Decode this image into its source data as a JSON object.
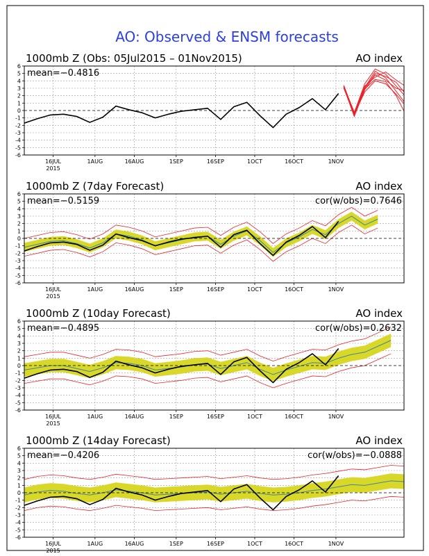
{
  "title": "AO: Observed & ENSM forecasts",
  "colors": {
    "title": "#2b3fe0",
    "observed": "#000000",
    "ensemble_members": "#e8232a",
    "spread_band": "#d9d728",
    "spread_envelope": "#e8232a",
    "ensemble_mean": "#3a8a9a",
    "grid": "#9a9a9a"
  },
  "chart_data": [
    {
      "type": "line",
      "title": "1000mb Z (Obs: 05Jul2015 – 01Nov2015)",
      "right_label": "AO index",
      "mean_label": "mean=−0.4816",
      "cor_label": "",
      "ylim": [
        -6,
        6
      ],
      "yticks": [
        "6",
        "5",
        "4",
        "3",
        "2",
        "1",
        "0",
        "-1",
        "-2",
        "-3",
        "-4",
        "-5",
        "-6"
      ],
      "xticks": [
        "16JUL",
        "1AUG",
        "16AUG",
        "1SEP",
        "16SEP",
        "1OCT",
        "16OCT",
        "1NOV"
      ],
      "xtick_days": [
        11,
        27,
        42,
        58,
        73,
        88,
        103,
        119
      ],
      "year_label": "2015",
      "xlim_days": [
        0,
        145
      ],
      "grid": true,
      "observed": {
        "x": [
          0,
          5,
          10,
          15,
          20,
          25,
          30,
          35,
          40,
          45,
          50,
          55,
          60,
          65,
          70,
          75,
          80,
          85,
          90,
          95,
          100,
          105,
          110,
          115,
          120
        ],
        "y": [
          -1.7,
          -1.1,
          -0.6,
          -0.5,
          -0.8,
          -1.6,
          -0.9,
          0.6,
          0.1,
          -0.3,
          -1.0,
          -0.5,
          -0.1,
          0.1,
          0.3,
          -1.2,
          0.5,
          1.1,
          -0.7,
          -2.3,
          -0.5,
          0.4,
          1.6,
          0.1,
          2.3
        ]
      },
      "forecast_members": [
        {
          "x": [
            122,
            126,
            130,
            134,
            138,
            142,
            145
          ],
          "y": [
            3.2,
            -0.6,
            3.1,
            5.3,
            4.4,
            2.6,
            1.2
          ]
        },
        {
          "x": [
            122,
            126,
            130,
            134,
            138,
            142,
            145
          ],
          "y": [
            3.4,
            -0.3,
            3.6,
            5.6,
            4.9,
            3.3,
            2.1
          ]
        },
        {
          "x": [
            122,
            126,
            130,
            134,
            138,
            142,
            145
          ],
          "y": [
            3.1,
            -0.8,
            2.8,
            4.8,
            4.1,
            3.0,
            2.7
          ]
        },
        {
          "x": [
            122,
            126,
            130,
            134,
            138,
            142,
            145
          ],
          "y": [
            3.3,
            -0.4,
            3.3,
            4.5,
            5.2,
            4.1,
            3.4
          ]
        },
        {
          "x": [
            122,
            126,
            130,
            134,
            138,
            142,
            145
          ],
          "y": [
            3.0,
            -0.5,
            2.5,
            4.0,
            3.6,
            2.2,
            0.9
          ]
        },
        {
          "x": [
            122,
            126,
            130,
            134,
            138,
            142,
            145
          ],
          "y": [
            3.2,
            -0.2,
            3.0,
            5.0,
            4.6,
            3.8,
            2.5
          ]
        },
        {
          "x": [
            122,
            126,
            130,
            134,
            138,
            142,
            145
          ],
          "y": [
            3.1,
            -0.6,
            2.9,
            4.2,
            3.9,
            2.0,
            -0.1
          ]
        }
      ]
    },
    {
      "type": "line",
      "title": "1000mb Z (7day Forecast)",
      "right_label": "AO index",
      "mean_label": "mean=−0.5159",
      "cor_label": "cor(w/obs)=0.7646",
      "ylim": [
        -6,
        6
      ],
      "yticks": [
        "6",
        "5",
        "4",
        "3",
        "2",
        "1",
        "0",
        "-1",
        "-2",
        "-3",
        "-4",
        "-5",
        "-6"
      ],
      "xticks": [
        "16JUL",
        "1AUG",
        "16AUG",
        "1SEP",
        "16SEP",
        "1OCT",
        "16OCT",
        "1NOV"
      ],
      "xtick_days": [
        11,
        27,
        42,
        58,
        73,
        88,
        103,
        119
      ],
      "year_label": "2015",
      "xlim_days": [
        0,
        145
      ],
      "grid": true,
      "observed": {
        "x": [
          0,
          5,
          10,
          15,
          20,
          25,
          30,
          35,
          40,
          45,
          50,
          55,
          60,
          65,
          70,
          75,
          80,
          85,
          90,
          95,
          100,
          105,
          110,
          115,
          120
        ],
        "y": [
          -1.7,
          -1.1,
          -0.6,
          -0.5,
          -0.8,
          -1.6,
          -0.9,
          0.6,
          0.1,
          -0.3,
          -1.0,
          -0.5,
          -0.1,
          0.1,
          0.3,
          -1.2,
          0.5,
          1.1,
          -0.7,
          -2.3,
          -0.5,
          0.4,
          1.6,
          0.1,
          2.3
        ]
      },
      "ensemble_mean": {
        "x": [
          0,
          5,
          10,
          15,
          20,
          25,
          30,
          35,
          40,
          45,
          50,
          55,
          60,
          65,
          70,
          75,
          80,
          85,
          90,
          95,
          100,
          105,
          110,
          115,
          120,
          125,
          130,
          135
        ],
        "y": [
          -1.2,
          -0.8,
          -0.4,
          -0.3,
          -0.7,
          -1.3,
          -0.6,
          0.6,
          0.3,
          -0.2,
          -1.0,
          -0.6,
          -0.2,
          0.2,
          0.3,
          -0.8,
          0.3,
          1.0,
          -0.3,
          -1.9,
          -0.6,
          0.2,
          1.2,
          0.5,
          2.0,
          3.0,
          1.8,
          2.6
        ]
      },
      "spread": 0.6,
      "envelope": 1.2
    },
    {
      "type": "line",
      "title": "1000mb Z (10day Forecast)",
      "right_label": "AO index",
      "mean_label": "mean=−0.4895",
      "cor_label": "cor(w/obs)=0.2632",
      "ylim": [
        -6,
        6
      ],
      "yticks": [
        "6",
        "5",
        "4",
        "3",
        "2",
        "1",
        "0",
        "-1",
        "-2",
        "-3",
        "-4",
        "-5",
        "-6"
      ],
      "xticks": [
        "16JUL",
        "1AUG",
        "16AUG",
        "1SEP",
        "16SEP",
        "1OCT",
        "16OCT",
        "1NOV"
      ],
      "xtick_days": [
        11,
        27,
        42,
        58,
        73,
        88,
        103,
        119
      ],
      "year_label": "2015",
      "xlim_days": [
        0,
        145
      ],
      "grid": true,
      "observed": {
        "x": [
          0,
          5,
          10,
          15,
          20,
          25,
          30,
          35,
          40,
          45,
          50,
          55,
          60,
          65,
          70,
          75,
          80,
          85,
          90,
          95,
          100,
          105,
          110,
          115,
          120
        ],
        "y": [
          -1.7,
          -1.1,
          -0.6,
          -0.5,
          -0.8,
          -1.6,
          -0.9,
          0.6,
          0.1,
          -0.3,
          -1.0,
          -0.5,
          -0.1,
          0.1,
          0.3,
          -1.2,
          0.5,
          1.1,
          -0.7,
          -2.3,
          -0.5,
          0.4,
          1.6,
          0.1,
          2.3
        ]
      },
      "ensemble_mean": {
        "x": [
          0,
          5,
          10,
          15,
          20,
          25,
          30,
          35,
          40,
          45,
          50,
          55,
          60,
          65,
          70,
          75,
          80,
          85,
          90,
          95,
          100,
          105,
          110,
          115,
          120,
          125,
          130,
          135,
          140
        ],
        "y": [
          -0.6,
          -0.3,
          0.0,
          0.0,
          -0.4,
          -0.8,
          -0.3,
          0.4,
          0.3,
          0.0,
          -0.6,
          -0.4,
          -0.2,
          0.1,
          0.2,
          -0.4,
          0.0,
          0.4,
          -0.5,
          -1.2,
          -0.6,
          -0.1,
          0.4,
          0.3,
          1.0,
          1.5,
          1.8,
          2.6,
          3.4
        ]
      },
      "spread": 0.9,
      "envelope": 1.8
    },
    {
      "type": "line",
      "title": "1000mb Z (14day Forecast)",
      "right_label": "AO index",
      "mean_label": "mean=−0.4206",
      "cor_label": "cor(w/obs)=−0.0888",
      "ylim": [
        -6,
        6
      ],
      "yticks": [
        "6",
        "5",
        "4",
        "3",
        "2",
        "1",
        "0",
        "-1",
        "-2",
        "-3",
        "-4",
        "-5",
        "-6"
      ],
      "xticks": [
        "16JUL",
        "1AUG",
        "16AUG",
        "1SEP",
        "16SEP",
        "1OCT",
        "16OCT",
        "1NOV"
      ],
      "xtick_days": [
        11,
        27,
        42,
        58,
        73,
        88,
        103,
        119
      ],
      "year_label": "2015",
      "xlim_days": [
        0,
        145
      ],
      "grid": true,
      "observed": {
        "x": [
          0,
          5,
          10,
          15,
          20,
          25,
          30,
          35,
          40,
          45,
          50,
          55,
          60,
          65,
          70,
          75,
          80,
          85,
          90,
          95,
          100,
          105,
          110,
          115,
          120
        ],
        "y": [
          -1.7,
          -1.1,
          -0.6,
          -0.5,
          -0.8,
          -1.6,
          -0.9,
          0.6,
          0.1,
          -0.3,
          -1.0,
          -0.5,
          -0.1,
          0.1,
          0.3,
          -1.2,
          0.5,
          1.1,
          -0.7,
          -2.3,
          -0.5,
          0.4,
          1.6,
          0.1,
          2.3
        ]
      },
      "ensemble_mean": {
        "x": [
          0,
          5,
          10,
          15,
          20,
          25,
          30,
          35,
          40,
          45,
          50,
          55,
          60,
          65,
          70,
          75,
          80,
          85,
          90,
          95,
          100,
          105,
          110,
          115,
          120,
          125,
          130,
          135,
          140,
          145
        ],
        "y": [
          -0.3,
          0.1,
          0.3,
          0.2,
          -0.1,
          -0.3,
          0.0,
          0.4,
          0.2,
          0.0,
          -0.3,
          -0.2,
          -0.1,
          0.0,
          0.1,
          -0.2,
          0.0,
          0.2,
          -0.1,
          -0.3,
          -0.2,
          0.0,
          0.3,
          0.5,
          0.8,
          1.1,
          1.0,
          1.3,
          1.6,
          1.5
        ]
      },
      "spread": 1.0,
      "envelope": 2.1
    }
  ]
}
